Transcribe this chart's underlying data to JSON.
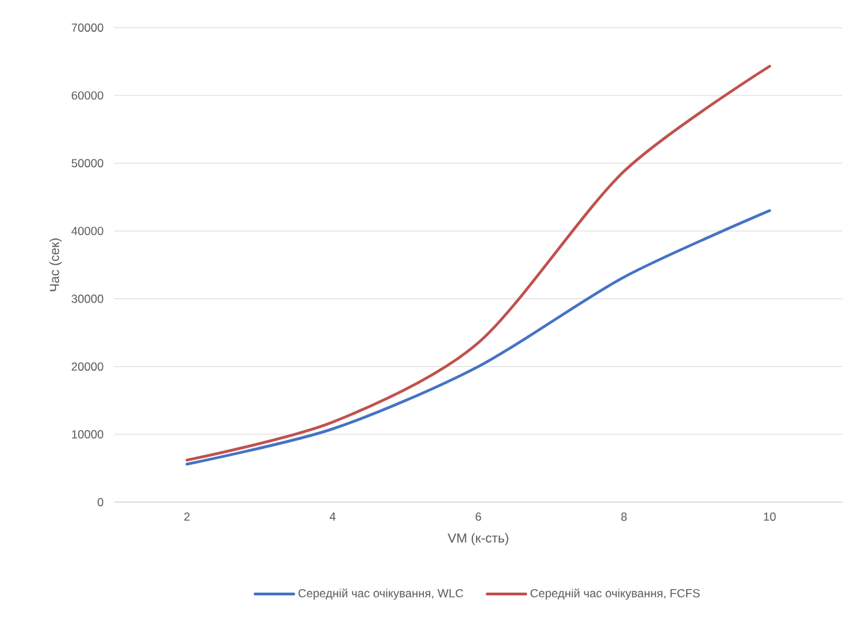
{
  "chart_data": {
    "type": "line",
    "xlabel": "VM (к-сть)",
    "ylabel": "Час (сек)",
    "categories": [
      "2",
      "4",
      "6",
      "8",
      "10"
    ],
    "series": [
      {
        "name": "Середній час очікування, WLC",
        "color": "#4472c4",
        "values": [
          5600,
          10800,
          20000,
          33200,
          43000
        ]
      },
      {
        "name": "Середній час очікування, FCFS",
        "color": "#c0504d",
        "values": [
          6200,
          11800,
          23500,
          48800,
          64300
        ]
      }
    ],
    "ylim": [
      0,
      70000
    ],
    "yticks": [
      0,
      10000,
      20000,
      30000,
      40000,
      50000,
      60000,
      70000
    ],
    "grid": "y",
    "legend": "bottom",
    "marker": "none",
    "line_style": "solid"
  }
}
